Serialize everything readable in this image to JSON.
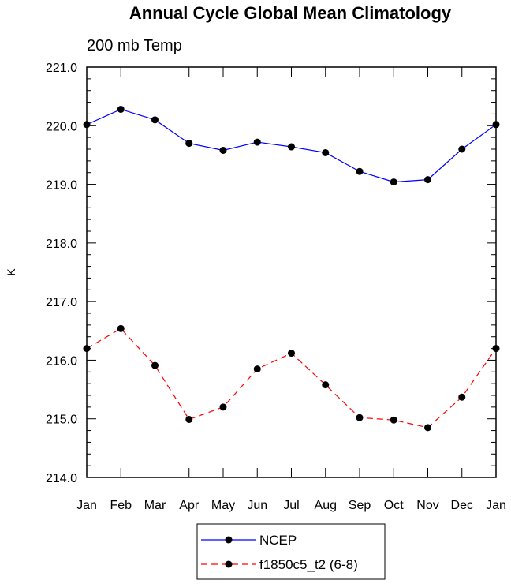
{
  "chart_data": {
    "type": "line",
    "title": "Annual Cycle Global Mean Climatology",
    "subtitle": "200 mb Temp",
    "xlabel": "",
    "ylabel": "K",
    "categories": [
      "Jan",
      "Feb",
      "Mar",
      "Apr",
      "May",
      "Jun",
      "Jul",
      "Aug",
      "Sep",
      "Oct",
      "Nov",
      "Dec",
      "Jan"
    ],
    "ylim": [
      214.0,
      221.0
    ],
    "yticks": [
      "214.0",
      "215.0",
      "216.0",
      "217.0",
      "218.0",
      "219.0",
      "220.0",
      "221.0"
    ],
    "series": [
      {
        "name": "NCEP",
        "color": "#0000ff",
        "dash": "solid",
        "values": [
          220.02,
          220.28,
          220.1,
          219.7,
          219.58,
          219.72,
          219.64,
          219.54,
          219.22,
          219.04,
          219.08,
          219.6,
          220.02
        ]
      },
      {
        "name": "f1850c5_t2 (6-8)",
        "color": "#ff0000",
        "dash": "dashed",
        "values": [
          216.2,
          216.54,
          215.91,
          214.99,
          215.2,
          215.85,
          216.12,
          215.58,
          215.02,
          214.98,
          214.85,
          215.37,
          216.2
        ]
      }
    ],
    "legend_position": "bottom-center"
  }
}
